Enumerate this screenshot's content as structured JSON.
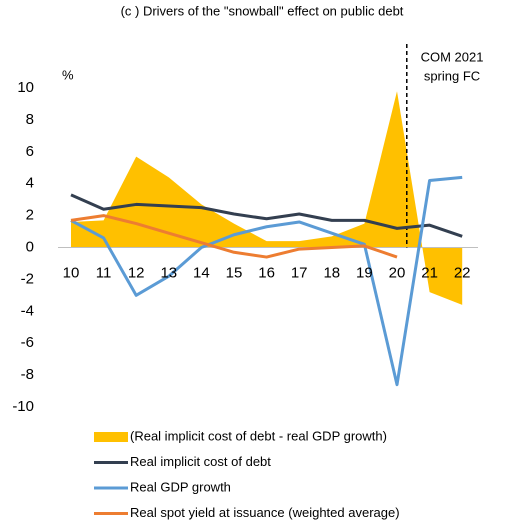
{
  "chart_data": {
    "type": "area-line",
    "title": "(c ) Drivers of the \"snowball\" effect on public debt",
    "y_label": "%",
    "annotation": [
      "COM 2021",
      "spring FC"
    ],
    "categories": [
      "10",
      "11",
      "12",
      "13",
      "14",
      "15",
      "16",
      "17",
      "18",
      "19",
      "20",
      "21",
      "22"
    ],
    "series": [
      {
        "name": "(Real implicit cost of debt - real GDP growth)",
        "kind": "area",
        "color": "#ffc000",
        "values": [
          1.6,
          1.7,
          5.7,
          4.4,
          2.7,
          1.5,
          0.4,
          0.4,
          0.7,
          1.5,
          9.8,
          -2.8,
          -3.6
        ]
      },
      {
        "name": "Real implicit cost of debt",
        "kind": "line",
        "color": "#333f50",
        "values": [
          3.3,
          2.4,
          2.7,
          2.6,
          2.5,
          2.1,
          1.8,
          2.1,
          1.7,
          1.7,
          1.2,
          1.4,
          0.7
        ]
      },
      {
        "name": "Real GDP growth",
        "kind": "line",
        "color": "#5b9bd5",
        "values": [
          1.7,
          0.6,
          -3.0,
          -1.8,
          0.0,
          0.8,
          1.3,
          1.6,
          0.9,
          0.2,
          -8.6,
          4.2,
          4.4
        ]
      },
      {
        "name": "Real spot yield at issuance (weighted average)",
        "kind": "line",
        "color": "#ed7d31",
        "values": [
          1.7,
          2.0,
          1.5,
          0.9,
          0.3,
          -0.3,
          -0.6,
          -0.1,
          0.0,
          0.1,
          -0.6,
          null,
          null
        ]
      }
    ],
    "ylim": [
      -10,
      10
    ],
    "yticks": [
      -10,
      -8,
      -6,
      -4,
      -2,
      0,
      2,
      4,
      6,
      8,
      10
    ],
    "grid": false
  }
}
